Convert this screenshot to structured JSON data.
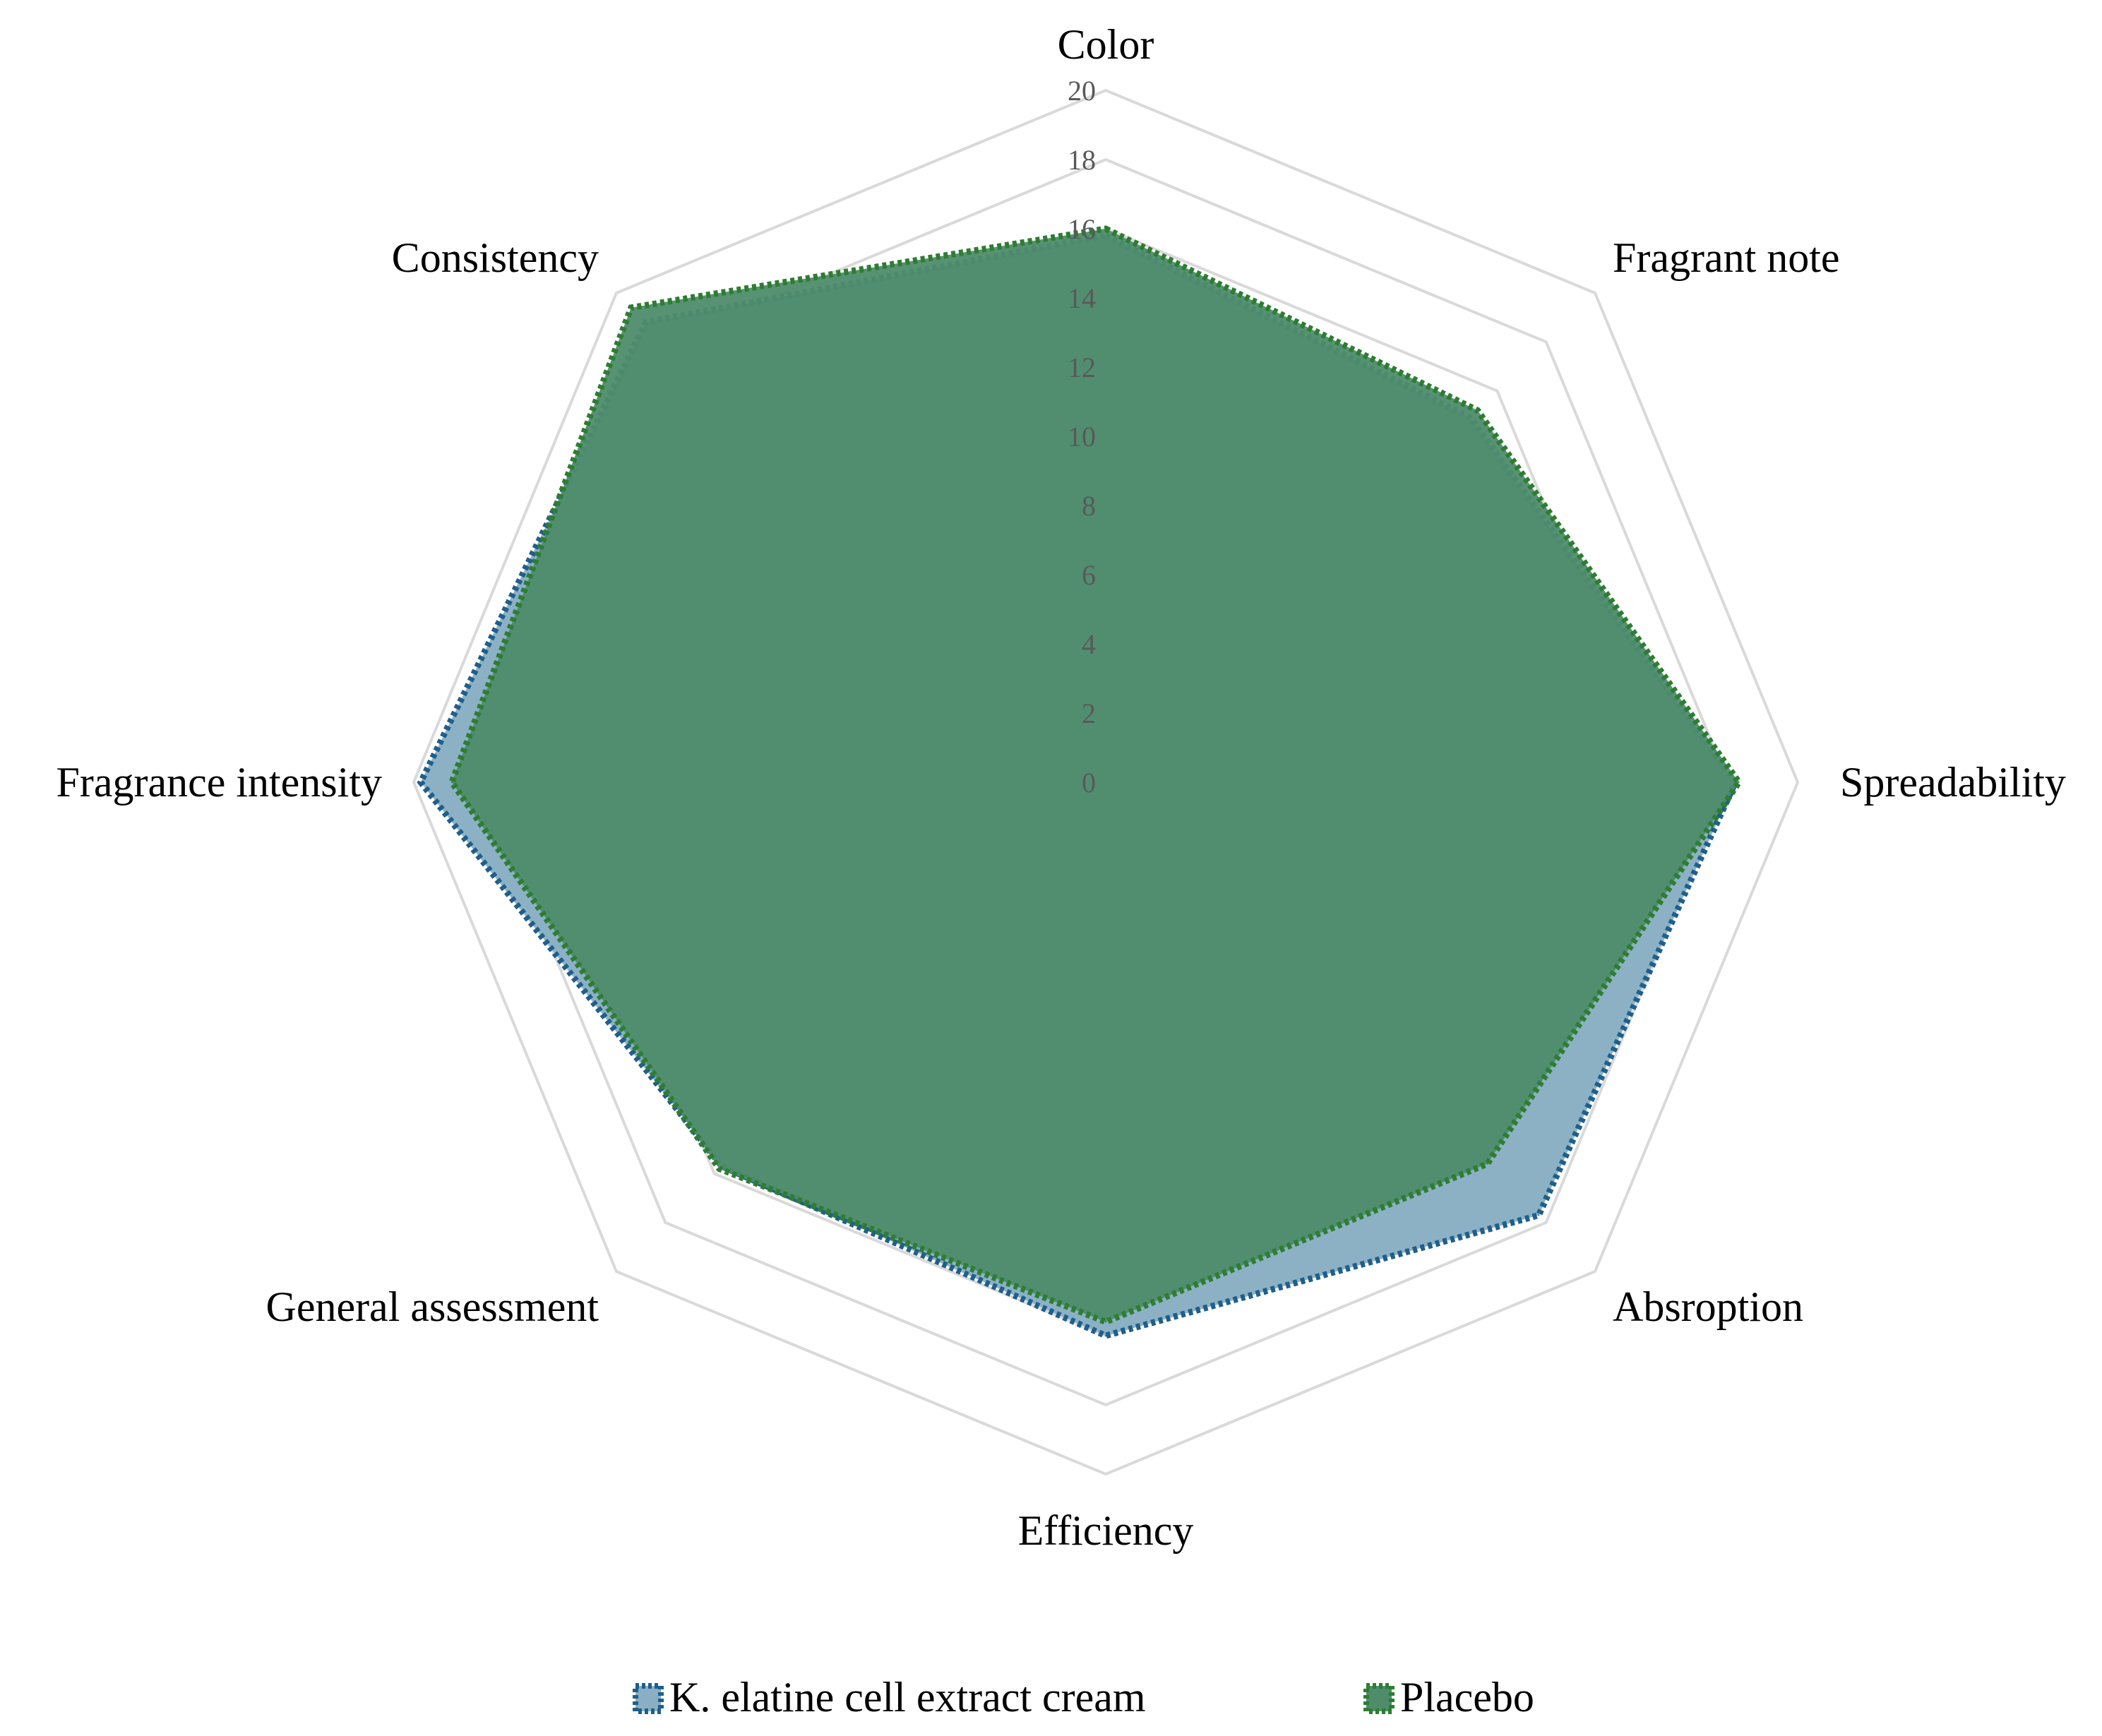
{
  "chart_data": {
    "type": "radar",
    "axes": [
      "Color",
      "Fragrant note",
      "Spreadability",
      "Absroption",
      "Efficiency",
      "General assessment",
      "Fragrance intensity",
      "Consistency"
    ],
    "rlim": [
      0,
      20
    ],
    "ticks": [
      "0",
      "2",
      "4",
      "6",
      "8",
      "10",
      "12",
      "14",
      "16",
      "18",
      "20"
    ],
    "grid": true,
    "legend_position": "bottom",
    "series": [
      {
        "name": "K. elatine cell extract cream",
        "values": [
          15.8,
          14.9,
          18.2,
          17.7,
          16.0,
          15.7,
          19.8,
          18.8
        ],
        "color": "#1f5f8b",
        "fill": "#8aafc4"
      },
      {
        "name": "Placebo",
        "values": [
          16.0,
          15.2,
          18.3,
          15.6,
          15.6,
          15.8,
          18.9,
          19.4
        ],
        "color": "#2e7d32",
        "fill": "#4e8c6c"
      }
    ]
  }
}
